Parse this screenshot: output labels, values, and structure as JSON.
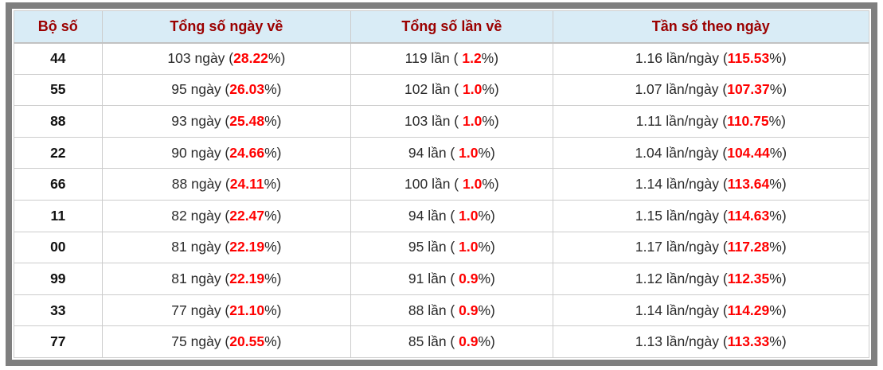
{
  "colors": {
    "frame_gray": "#7f7f7f",
    "header_bg": "#d9ecf6",
    "header_text": "#9b0000",
    "highlight_red": "#ff0000",
    "cell_border": "#cccccc",
    "body_text": "#2a2a2a"
  },
  "table": {
    "columns": [
      {
        "label": "Bộ số"
      },
      {
        "label": "Tổng số ngày về"
      },
      {
        "label": "Tổng số lần về"
      },
      {
        "label": "Tần số theo ngày"
      }
    ],
    "rows": [
      {
        "pair": "44",
        "days": {
          "pre": "103 ngày (",
          "red": "28.22",
          "post": "%)"
        },
        "times": {
          "pre": "119 lần ( ",
          "red": "1.2",
          "post": "%)"
        },
        "freq": {
          "pre": "1.16 lần/ngày (",
          "red": "115.53",
          "post": "%)"
        }
      },
      {
        "pair": "55",
        "days": {
          "pre": "95 ngày (",
          "red": "26.03",
          "post": "%)"
        },
        "times": {
          "pre": "102 lần ( ",
          "red": "1.0",
          "post": "%)"
        },
        "freq": {
          "pre": "1.07 lần/ngày (",
          "red": "107.37",
          "post": "%)"
        }
      },
      {
        "pair": "88",
        "days": {
          "pre": "93 ngày (",
          "red": "25.48",
          "post": "%)"
        },
        "times": {
          "pre": "103 lần ( ",
          "red": "1.0",
          "post": "%)"
        },
        "freq": {
          "pre": "1.11 lần/ngày (",
          "red": "110.75",
          "post": "%)"
        }
      },
      {
        "pair": "22",
        "days": {
          "pre": "90 ngày (",
          "red": "24.66",
          "post": "%)"
        },
        "times": {
          "pre": "94 lần ( ",
          "red": "1.0",
          "post": "%)"
        },
        "freq": {
          "pre": "1.04 lần/ngày (",
          "red": "104.44",
          "post": "%)"
        }
      },
      {
        "pair": "66",
        "days": {
          "pre": "88 ngày (",
          "red": "24.11",
          "post": "%)"
        },
        "times": {
          "pre": "100 lần ( ",
          "red": "1.0",
          "post": "%)"
        },
        "freq": {
          "pre": "1.14 lần/ngày (",
          "red": "113.64",
          "post": "%)"
        }
      },
      {
        "pair": "11",
        "days": {
          "pre": "82 ngày (",
          "red": "22.47",
          "post": "%)"
        },
        "times": {
          "pre": "94 lần ( ",
          "red": "1.0",
          "post": "%)"
        },
        "freq": {
          "pre": "1.15 lần/ngày (",
          "red": "114.63",
          "post": "%)"
        }
      },
      {
        "pair": "00",
        "days": {
          "pre": "81 ngày (",
          "red": "22.19",
          "post": "%)"
        },
        "times": {
          "pre": "95 lần ( ",
          "red": "1.0",
          "post": "%)"
        },
        "freq": {
          "pre": "1.17 lần/ngày (",
          "red": "117.28",
          "post": "%)"
        }
      },
      {
        "pair": "99",
        "days": {
          "pre": "81 ngày (",
          "red": "22.19",
          "post": "%)"
        },
        "times": {
          "pre": "91 lần ( ",
          "red": "0.9",
          "post": "%)"
        },
        "freq": {
          "pre": "1.12 lần/ngày (",
          "red": "112.35",
          "post": "%)"
        }
      },
      {
        "pair": "33",
        "days": {
          "pre": "77 ngày (",
          "red": "21.10",
          "post": "%)"
        },
        "times": {
          "pre": "88 lần ( ",
          "red": "0.9",
          "post": "%)"
        },
        "freq": {
          "pre": "1.14 lần/ngày (",
          "red": "114.29",
          "post": "%)"
        }
      },
      {
        "pair": "77",
        "days": {
          "pre": "75 ngày (",
          "red": "20.55",
          "post": "%)"
        },
        "times": {
          "pre": "85 lần ( ",
          "red": "0.9",
          "post": "%)"
        },
        "freq": {
          "pre": "1.13 lần/ngày (",
          "red": "113.33",
          "post": "%)"
        }
      }
    ]
  }
}
